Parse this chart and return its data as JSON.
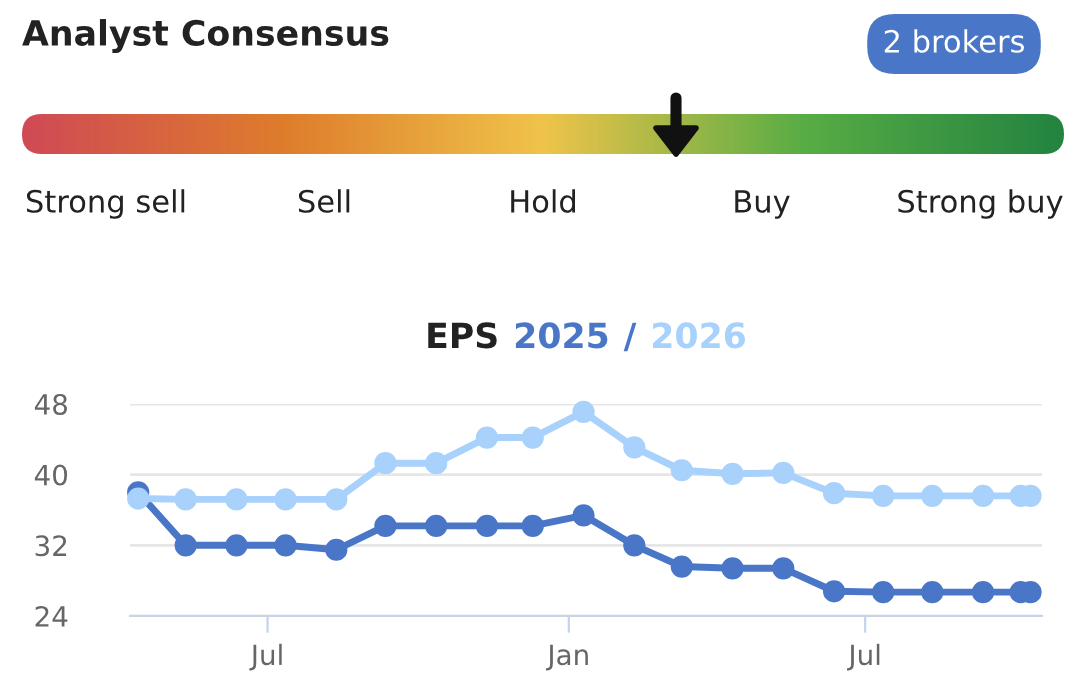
{
  "chart_data": [
    {
      "type": "other",
      "title": "Analyst Consensus",
      "annotations": [
        "2 brokers"
      ],
      "categories": [
        "Strong sell",
        "Sell",
        "Hold",
        "Buy",
        "Strong buy"
      ],
      "colors": [
        "#d04a55",
        "#de7d2c",
        "#f0c44a",
        "#59ad45",
        "#238440"
      ]
    },
    {
      "type": "line",
      "title": "EPS 2025 / 2026",
      "marker": "circle",
      "grid": "y",
      "x": [
        "2024-04-13",
        "2024-05-12",
        "2024-06-12",
        "2024-07-12",
        "2024-08-12",
        "2024-09-11",
        "2024-10-12",
        "2024-11-12",
        "2024-12-10",
        "2025-01-10",
        "2025-02-10",
        "2025-03-11",
        "2025-04-11",
        "2025-05-12",
        "2025-06-12",
        "2025-07-12",
        "2025-08-11",
        "2025-09-11",
        "2025-10-04",
        "2025-10-10"
      ],
      "series": [
        {
          "color": "#4a76c8",
          "values": [
            38.0,
            32.0,
            32.0,
            32.0,
            31.5,
            34.2,
            34.2,
            34.2,
            34.2,
            35.4,
            32.0,
            29.6,
            29.4,
            29.4,
            26.8,
            26.7,
            26.7,
            26.7,
            26.7,
            26.7
          ]
        },
        {
          "color": "#a8d1fb",
          "values": [
            37.3,
            37.2,
            37.2,
            37.2,
            37.2,
            41.3,
            41.3,
            44.2,
            44.2,
            47.1,
            43.1,
            40.5,
            40.1,
            40.2,
            37.9,
            37.6,
            37.6,
            37.6,
            37.6,
            37.6
          ]
        }
      ],
      "xlim": [
        "2024-04-08",
        "2025-10-17"
      ],
      "ylim": [
        24,
        48
      ],
      "xticks": [
        {
          "value": "2024-07-01",
          "label": "Jul"
        },
        {
          "value": "2025-01-01",
          "label": "Jan"
        },
        {
          "value": "2025-07-01",
          "label": "Jul"
        }
      ],
      "yticks": [
        24,
        32,
        40,
        48
      ]
    }
  ]
}
